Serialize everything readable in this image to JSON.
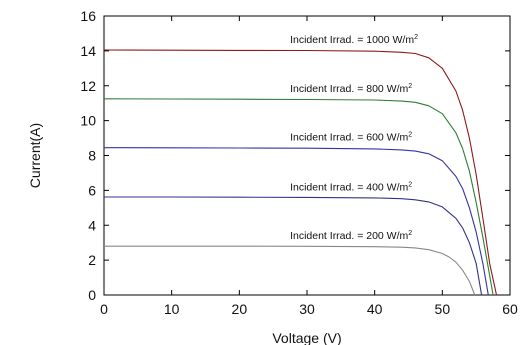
{
  "chart_data": {
    "type": "line",
    "title": "",
    "xlabel": "Voltage (V)",
    "ylabel": "Current(A)",
    "xlim": [
      0,
      60
    ],
    "ylim": [
      0,
      16
    ],
    "xticks": [
      0,
      10,
      20,
      30,
      40,
      50,
      60
    ],
    "yticks": [
      0,
      2,
      4,
      6,
      8,
      10,
      12,
      14,
      16
    ],
    "grid": false,
    "legend": "none",
    "series": [
      {
        "name": "Incident Irrad. = 1000 W/m²",
        "color": "#8b1a1a",
        "x": [
          0,
          10,
          20,
          30,
          40,
          44,
          46,
          48,
          50,
          52,
          53,
          54,
          55,
          56,
          57,
          58
        ],
        "y": [
          14.05,
          14.04,
          14.03,
          14.02,
          13.98,
          13.92,
          13.85,
          13.6,
          13.0,
          11.7,
          10.6,
          9.0,
          6.9,
          4.4,
          1.8,
          0
        ]
      },
      {
        "name": "Incident Irrad. = 800 W/m²",
        "color": "#2e7d32",
        "x": [
          0,
          10,
          20,
          30,
          40,
          44,
          46,
          48,
          50,
          52,
          53,
          54,
          55,
          56,
          57,
          57.5
        ],
        "y": [
          11.25,
          11.24,
          11.23,
          11.21,
          11.18,
          11.12,
          11.05,
          10.85,
          10.4,
          9.3,
          8.4,
          7.1,
          5.3,
          3.3,
          1.1,
          0
        ]
      },
      {
        "name": "Incident Irrad. = 600 W/m²",
        "color": "#3333aa",
        "x": [
          0,
          10,
          20,
          30,
          40,
          44,
          46,
          48,
          50,
          52,
          53,
          54,
          55,
          56,
          56.8
        ],
        "y": [
          8.45,
          8.44,
          8.43,
          8.42,
          8.38,
          8.32,
          8.25,
          8.1,
          7.7,
          6.8,
          6.1,
          5.0,
          3.6,
          1.8,
          0
        ]
      },
      {
        "name": "Incident Irrad. = 400 W/m²",
        "color": "#333388",
        "x": [
          0,
          10,
          20,
          30,
          40,
          44,
          46,
          48,
          50,
          52,
          53,
          54,
          55,
          55.8
        ],
        "y": [
          5.62,
          5.62,
          5.61,
          5.6,
          5.57,
          5.52,
          5.46,
          5.34,
          5.05,
          4.4,
          3.85,
          3.0,
          1.8,
          0
        ]
      },
      {
        "name": "Incident Irrad. = 200 W/m²",
        "color": "#888888",
        "x": [
          0,
          10,
          20,
          30,
          40,
          44,
          46,
          48,
          50,
          51,
          52,
          53,
          54,
          54.8
        ],
        "y": [
          2.8,
          2.8,
          2.8,
          2.79,
          2.77,
          2.74,
          2.7,
          2.6,
          2.38,
          2.18,
          1.88,
          1.42,
          0.78,
          0
        ]
      }
    ],
    "annotations": [
      {
        "text": "Incident Irrad. = 1000 W/m",
        "sup": "2",
        "x": 27.5,
        "y": 14.45
      },
      {
        "text": "Incident Irrad. = 800 W/m",
        "sup": "2",
        "x": 27.5,
        "y": 11.65
      },
      {
        "text": "Incident Irrad. = 600 W/m",
        "sup": "2",
        "x": 27.5,
        "y": 8.85
      },
      {
        "text": "Incident Irrad. = 400 W/m",
        "sup": "2",
        "x": 27.5,
        "y": 6.0
      },
      {
        "text": "Incident Irrad. = 200 W/m",
        "sup": "2",
        "x": 27.5,
        "y": 3.2
      }
    ]
  }
}
